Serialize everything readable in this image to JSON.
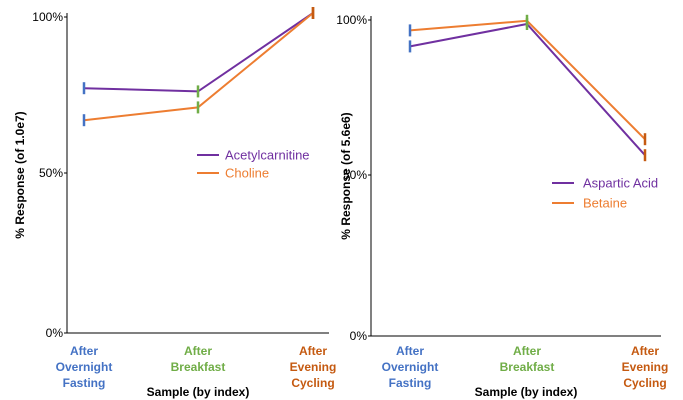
{
  "colors": {
    "axis": "#000000",
    "cat_overnight": "#4472C4",
    "cat_breakfast": "#70AD47",
    "cat_evening": "#C55A11",
    "acetylcarnitine": "#7030A0",
    "choline": "#ED7D31",
    "aspartic": "#7030A0",
    "betaine": "#ED7D31"
  },
  "chart_data": [
    {
      "type": "line",
      "xlabel": "Sample (by index)",
      "ylabel": "% Response (of 1.0e7)",
      "ylim": [
        0,
        100
      ],
      "yticks": [
        "0%",
        "50%",
        "100%"
      ],
      "categories": [
        "After Overnight Fasting",
        "After Breakfast",
        "After Evening Cycling"
      ],
      "category_colors": [
        "cat_overnight",
        "cat_breakfast",
        "cat_evening"
      ],
      "legend_position": "center-right",
      "series": [
        {
          "name": "Acetylcarnitine",
          "color_key": "acetylcarnitine",
          "values": [
            76.5,
            75.5,
            100
          ]
        },
        {
          "name": "Choline",
          "color_key": "choline",
          "values": [
            66.5,
            70.5,
            100
          ]
        }
      ]
    },
    {
      "type": "line",
      "xlabel": "Sample (by index)",
      "ylabel": "% Response (of 5.6e6)",
      "ylim": [
        0,
        100
      ],
      "yticks": [
        "0%",
        "50%",
        "100%"
      ],
      "categories": [
        "After Overnight Fasting",
        "After Breakfast",
        "After Evening Cycling"
      ],
      "category_colors": [
        "cat_overnight",
        "cat_breakfast",
        "cat_evening"
      ],
      "legend_position": "center-right",
      "series": [
        {
          "name": "Aspartic Acid",
          "color_key": "aspartic",
          "values": [
            90.5,
            97.5,
            56.5
          ]
        },
        {
          "name": "Betaine",
          "color_key": "betaine",
          "values": [
            95.5,
            98.5,
            61.5
          ]
        }
      ]
    }
  ]
}
